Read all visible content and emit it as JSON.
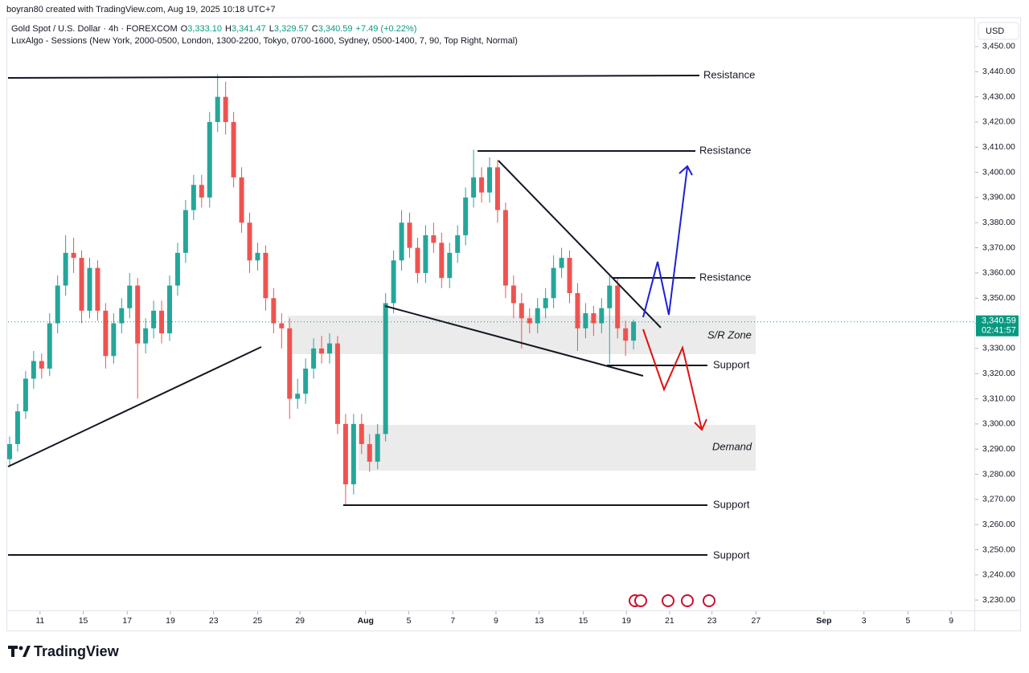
{
  "header": {
    "credit": "boyran80 created with TradingView.com, Aug 19, 2025 10:18 UTC+7",
    "symbol": "Gold Spot / U.S. Dollar · 4h · FOREXCOM",
    "ohlc": [
      {
        "key": "O",
        "value": "3,333.10"
      },
      {
        "key": "H",
        "value": "3,341.47"
      },
      {
        "key": "L",
        "value": "3,329.57"
      },
      {
        "key": "C",
        "value": "3,340.59"
      }
    ],
    "change": "+7.49 (+0.22%)",
    "indicator": "LuxAlgo - Sessions (New York, 2000-0500, London, 1300-2200, Tokyo, 0700-1600, Sydney, 0500-1400, 7, 90, Top Right, Normal)",
    "currency": "USD",
    "brand": "TradingView"
  },
  "annotations": [
    "Resistance",
    "Resistance",
    "Resistance",
    "S/R Zone",
    "Support",
    "Demand",
    "Support",
    "Support"
  ],
  "chart_data": {
    "type": "candlestick",
    "up_color": "#26a69a",
    "down_color": "#ef5350",
    "last_price": {
      "value": 3340.59,
      "label": "3,340.59"
    },
    "countdown": "02:41:57",
    "ylim": [
      3225.9,
      3468.5
    ],
    "yticks": [
      {
        "value": 3450,
        "label": "3,450.00"
      },
      {
        "value": 3440,
        "label": "3,440.00"
      },
      {
        "value": 3430,
        "label": "3,430.00"
      },
      {
        "value": 3420,
        "label": "3,420.00"
      },
      {
        "value": 3410,
        "label": "3,410.00"
      },
      {
        "value": 3400,
        "label": "3,400.00"
      },
      {
        "value": 3390,
        "label": "3,390.00"
      },
      {
        "value": 3380,
        "label": "3,380.00"
      },
      {
        "value": 3370,
        "label": "3,370.00"
      },
      {
        "value": 3360,
        "label": "3,360.00"
      },
      {
        "value": 3350,
        "label": "3,350.00"
      },
      {
        "value": 3340,
        "label": "3,340.00"
      },
      {
        "value": 3330,
        "label": "3,330.00"
      },
      {
        "value": 3320,
        "label": "3,320.00"
      },
      {
        "value": 3310,
        "label": "3,310.00"
      },
      {
        "value": 3300,
        "label": "3,300.00"
      },
      {
        "value": 3290,
        "label": "3,290.00"
      },
      {
        "value": 3280,
        "label": "3,280.00"
      },
      {
        "value": 3270,
        "label": "3,270.00"
      },
      {
        "value": 3260,
        "label": "3,260.00"
      },
      {
        "value": 3250,
        "label": "3,250.00"
      },
      {
        "value": 3240,
        "label": "3,240.00"
      },
      {
        "value": 3230,
        "label": "3,230.00"
      }
    ],
    "xlim": [
      -0.2,
      120.6
    ],
    "xticks": [
      {
        "value": 3.8,
        "label": "11"
      },
      {
        "value": 9.2,
        "label": "15"
      },
      {
        "value": 14.7,
        "label": "17"
      },
      {
        "value": 20.1,
        "label": "19"
      },
      {
        "value": 25.5,
        "label": "23"
      },
      {
        "value": 31.0,
        "label": "25"
      },
      {
        "value": 36.3,
        "label": "29"
      },
      {
        "value": 44.5,
        "label": "Aug"
      },
      {
        "value": 49.9,
        "label": "5"
      },
      {
        "value": 55.4,
        "label": "7"
      },
      {
        "value": 60.8,
        "label": "9"
      },
      {
        "value": 66.2,
        "label": "13"
      },
      {
        "value": 71.7,
        "label": "15"
      },
      {
        "value": 77.1,
        "label": "19"
      },
      {
        "value": 82.5,
        "label": "21"
      },
      {
        "value": 87.8,
        "label": "23"
      },
      {
        "value": 93.3,
        "label": "27"
      },
      {
        "value": 101.8,
        "label": "Sep"
      },
      {
        "value": 106.8,
        "label": "3"
      },
      {
        "value": 112.3,
        "label": "5"
      },
      {
        "value": 117.7,
        "label": "9"
      }
    ],
    "candles": [
      [
        3286,
        3295,
        3283,
        3292
      ],
      [
        3292,
        3308,
        3289,
        3305
      ],
      [
        3305,
        3321,
        3302,
        3318
      ],
      [
        3318,
        3329,
        3314,
        3325
      ],
      [
        3325,
        3328,
        3318,
        3322
      ],
      [
        3322,
        3344,
        3319,
        3340
      ],
      [
        3340,
        3359,
        3336,
        3355
      ],
      [
        3355,
        3375,
        3351,
        3368
      ],
      [
        3368,
        3374,
        3360,
        3366
      ],
      [
        3366,
        3369,
        3340,
        3345
      ],
      [
        3345,
        3366,
        3342,
        3362
      ],
      [
        3362,
        3365,
        3341,
        3345
      ],
      [
        3345,
        3348,
        3322,
        3327
      ],
      [
        3327,
        3344,
        3324,
        3340
      ],
      [
        3340,
        3350,
        3336,
        3346
      ],
      [
        3346,
        3360,
        3342,
        3355
      ],
      [
        3355,
        3358,
        3310,
        3332
      ],
      [
        3332,
        3342,
        3328,
        3338
      ],
      [
        3338,
        3349,
        3334,
        3345
      ],
      [
        3345,
        3349,
        3332,
        3336
      ],
      [
        3336,
        3359,
        3333,
        3355
      ],
      [
        3355,
        3372,
        3351,
        3368
      ],
      [
        3368,
        3389,
        3364,
        3385
      ],
      [
        3385,
        3399,
        3381,
        3395
      ],
      [
        3395,
        3399,
        3386,
        3390
      ],
      [
        3390,
        3424,
        3386,
        3420
      ],
      [
        3420,
        3439,
        3416,
        3430
      ],
      [
        3430,
        3436,
        3415,
        3420
      ],
      [
        3420,
        3424,
        3394,
        3398
      ],
      [
        3398,
        3402,
        3376,
        3380
      ],
      [
        3380,
        3384,
        3360,
        3365
      ],
      [
        3365,
        3372,
        3361,
        3368
      ],
      [
        3368,
        3371,
        3345,
        3350
      ],
      [
        3350,
        3354,
        3336,
        3340
      ],
      [
        3340,
        3344,
        3330,
        3338
      ],
      [
        3338,
        3342,
        3302,
        3310
      ],
      [
        3310,
        3318,
        3306,
        3312
      ],
      [
        3312,
        3326,
        3308,
        3322
      ],
      [
        3322,
        3334,
        3318,
        3330
      ],
      [
        3330,
        3335,
        3324,
        3328
      ],
      [
        3328,
        3336,
        3324,
        3332
      ],
      [
        3332,
        3335,
        3296,
        3300
      ],
      [
        3300,
        3304,
        3268,
        3276
      ],
      [
        3276,
        3304,
        3272,
        3300
      ],
      [
        3300,
        3304,
        3288,
        3292
      ],
      [
        3292,
        3296,
        3281,
        3285
      ],
      [
        3285,
        3300,
        3282,
        3296
      ],
      [
        3296,
        3352,
        3293,
        3348
      ],
      [
        3348,
        3369,
        3344,
        3365
      ],
      [
        3365,
        3385,
        3361,
        3380
      ],
      [
        3380,
        3384,
        3366,
        3370
      ],
      [
        3370,
        3374,
        3356,
        3360
      ],
      [
        3360,
        3379,
        3356,
        3375
      ],
      [
        3375,
        3380,
        3368,
        3372
      ],
      [
        3372,
        3376,
        3354,
        3358
      ],
      [
        3358,
        3372,
        3354,
        3368
      ],
      [
        3368,
        3379,
        3364,
        3375
      ],
      [
        3375,
        3394,
        3371,
        3390
      ],
      [
        3390,
        3409,
        3386,
        3398
      ],
      [
        3398,
        3402,
        3388,
        3392
      ],
      [
        3392,
        3406,
        3388,
        3402
      ],
      [
        3402,
        3405,
        3380,
        3385
      ],
      [
        3385,
        3388,
        3350,
        3355
      ],
      [
        3355,
        3359,
        3342,
        3348
      ],
      [
        3348,
        3352,
        3330,
        3342
      ],
      [
        3342,
        3346,
        3336,
        3340
      ],
      [
        3340,
        3350,
        3336,
        3346
      ],
      [
        3346,
        3354,
        3342,
        3350
      ],
      [
        3350,
        3367,
        3346,
        3362
      ],
      [
        3362,
        3370,
        3358,
        3366
      ],
      [
        3366,
        3369,
        3348,
        3352
      ],
      [
        3352,
        3356,
        3329,
        3338
      ],
      [
        3338,
        3348,
        3334,
        3344
      ],
      [
        3344,
        3347,
        3335,
        3340
      ],
      [
        3340,
        3350,
        3336,
        3346
      ],
      [
        3346,
        3359,
        3324,
        3355
      ],
      [
        3355,
        3358,
        3334,
        3338
      ],
      [
        3338,
        3341,
        3327,
        3333.1
      ],
      [
        3333.1,
        3341.47,
        3329.57,
        3340.59
      ]
    ]
  }
}
